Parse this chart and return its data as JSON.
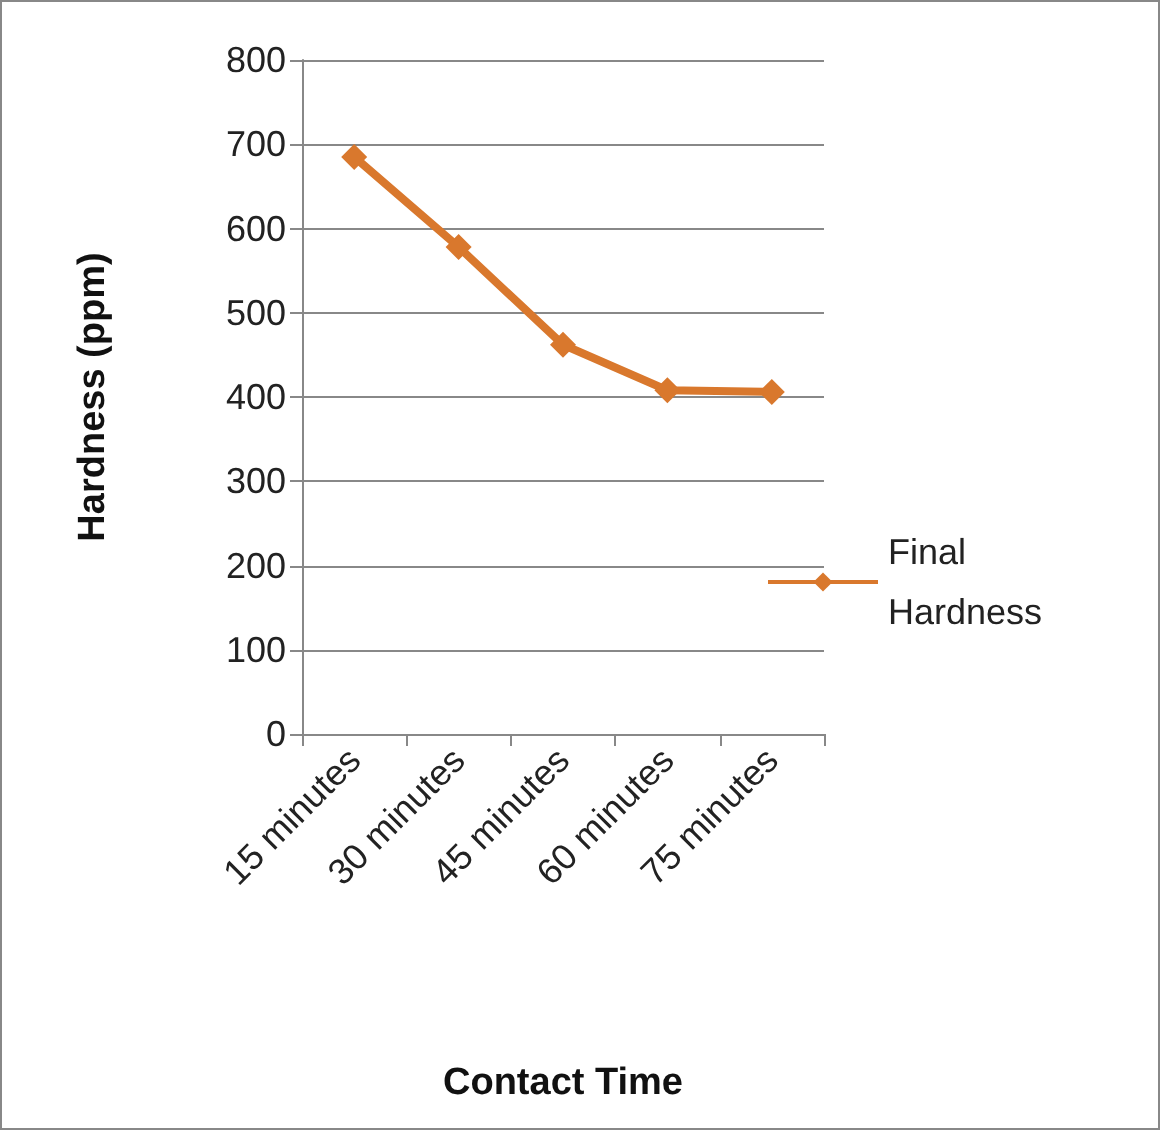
{
  "chart_data": {
    "type": "line",
    "xlabel": "Contact Time",
    "ylabel": "Hardness (ppm)",
    "categories": [
      "15 minutes",
      "30 minutes",
      "45 minutes",
      "60 minutes",
      "75 minutes"
    ],
    "series": [
      {
        "name": "Final Hardness",
        "color": "#d9782d",
        "values": [
          685,
          578,
          462,
          408,
          406
        ]
      }
    ],
    "ylim": [
      0,
      800
    ],
    "yticks": [
      0,
      100,
      200,
      300,
      400,
      500,
      600,
      700,
      800
    ],
    "grid": "y",
    "legend": "right",
    "marker": "diamond",
    "line_style": "solid"
  }
}
